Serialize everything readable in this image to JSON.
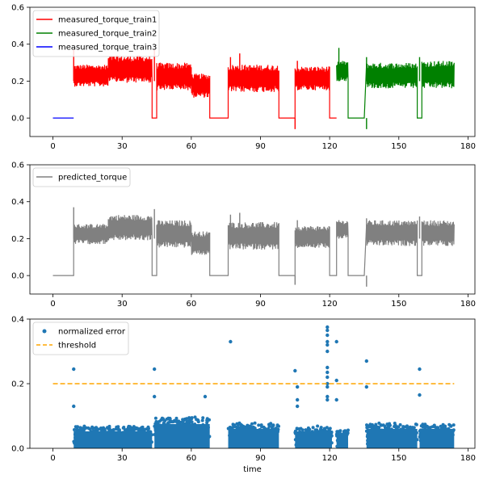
{
  "chart_data": [
    {
      "type": "line",
      "title": "",
      "xlabel": "",
      "ylabel": "",
      "xlim": [
        -10,
        183
      ],
      "ylim": [
        -0.1,
        0.6
      ],
      "xticks": [
        "0",
        "30",
        "60",
        "90",
        "120",
        "150",
        "180"
      ],
      "yticks": [
        "0.0",
        "0.2",
        "0.4",
        "0.6"
      ],
      "grid": false,
      "legend": "top-left",
      "note": "oscillating signal; each segment's values are given as [x_start, x_end, y_low, y_high]",
      "series": [
        {
          "name": "measured_torque_train1",
          "color": "#ff0000",
          "segments": [
            [
              9,
              24,
              0.17,
              0.29
            ],
            [
              24,
              43,
              0.19,
              0.34
            ],
            [
              43,
              45,
              0.0,
              0.0
            ],
            [
              45,
              60,
              0.15,
              0.3
            ],
            [
              60,
              68,
              0.11,
              0.24
            ],
            [
              68,
              76,
              0.0,
              0.0
            ],
            [
              76,
              98,
              0.14,
              0.29
            ],
            [
              98,
              105,
              0.0,
              0.0
            ],
            [
              105,
              120,
              0.15,
              0.28
            ],
            [
              120,
              123,
              0.0,
              0.0
            ]
          ],
          "spikes": [
            [
              9,
              0.37
            ],
            [
              44,
              0.37
            ],
            [
              77,
              0.33
            ],
            [
              81,
              0.35
            ],
            [
              105,
              -0.06
            ],
            [
              106,
              0.31
            ]
          ]
        },
        {
          "name": "measured_torque_train2",
          "color": "#008000",
          "segments": [
            [
              123,
              128,
              0.2,
              0.31
            ],
            [
              128,
              135,
              0.0,
              0.0
            ],
            [
              136,
              158,
              0.16,
              0.3
            ],
            [
              158,
              160,
              0.0,
              0.0
            ],
            [
              160,
              174,
              0.16,
              0.31
            ]
          ],
          "spikes": [
            [
              124,
              0.38
            ],
            [
              136,
              -0.06
            ],
            [
              136,
              0.33
            ],
            [
              159,
              0.33
            ]
          ]
        },
        {
          "name": "measured_torque_train3",
          "color": "#0000ff",
          "segments": [
            [
              0,
              9,
              0.0,
              0.0
            ]
          ],
          "spikes": []
        }
      ]
    },
    {
      "type": "line",
      "title": "",
      "xlabel": "",
      "ylabel": "",
      "xlim": [
        -10,
        183
      ],
      "ylim": [
        -0.1,
        0.6
      ],
      "xticks": [
        "0",
        "30",
        "60",
        "90",
        "120",
        "150",
        "180"
      ],
      "yticks": [
        "0.0",
        "0.2",
        "0.4",
        "0.6"
      ],
      "grid": false,
      "legend": "top-left",
      "series": [
        {
          "name": "predicted_torque",
          "color": "#808080",
          "segments": [
            [
              0,
              9,
              0.0,
              0.0
            ],
            [
              9,
              24,
              0.17,
              0.28
            ],
            [
              24,
              43,
              0.19,
              0.33
            ],
            [
              43,
              45,
              0.0,
              0.0
            ],
            [
              45,
              60,
              0.15,
              0.3
            ],
            [
              60,
              68,
              0.11,
              0.24
            ],
            [
              68,
              76,
              0.0,
              0.0
            ],
            [
              76,
              98,
              0.14,
              0.29
            ],
            [
              98,
              105,
              0.0,
              0.0
            ],
            [
              105,
              120,
              0.15,
              0.27
            ],
            [
              120,
              123,
              0.0,
              0.0
            ],
            [
              123,
              128,
              0.2,
              0.3
            ],
            [
              128,
              135,
              0.0,
              0.0
            ],
            [
              136,
              158,
              0.16,
              0.3
            ],
            [
              158,
              160,
              0.0,
              0.0
            ],
            [
              160,
              174,
              0.16,
              0.3
            ]
          ],
          "spikes": [
            [
              9,
              0.37
            ],
            [
              44,
              0.36
            ],
            [
              77,
              0.33
            ],
            [
              81,
              0.34
            ],
            [
              105,
              -0.05
            ],
            [
              106,
              0.3
            ],
            [
              124,
              0.3
            ],
            [
              136,
              -0.06
            ],
            [
              136,
              0.31
            ],
            [
              159,
              0.32
            ]
          ]
        }
      ]
    },
    {
      "type": "scatter",
      "title": "",
      "xlabel": "time",
      "ylabel": "",
      "xlim": [
        -10,
        183
      ],
      "ylim": [
        0.0,
        0.4
      ],
      "xticks": [
        "0",
        "30",
        "60",
        "90",
        "120",
        "150",
        "180"
      ],
      "yticks": [
        "0.0",
        "0.2",
        "0.4"
      ],
      "grid": false,
      "legend": "top-left",
      "series": [
        {
          "name": "normalized error",
          "color": "#1f77b4",
          "bands": [
            [
              9,
              43,
              0.0,
              0.07
            ],
            [
              44,
              68,
              0.0,
              0.1
            ],
            [
              76,
              98,
              0.0,
              0.08
            ],
            [
              105,
              121,
              0.0,
              0.07
            ],
            [
              123,
              128,
              0.0,
              0.06
            ],
            [
              136,
              158,
              0.0,
              0.08
            ],
            [
              159,
              174,
              0.0,
              0.08
            ]
          ],
          "outliers": [
            [
              9,
              0.245
            ],
            [
              9,
              0.13
            ],
            [
              44,
              0.245
            ],
            [
              44,
              0.16
            ],
            [
              66,
              0.16
            ],
            [
              77,
              0.33
            ],
            [
              105,
              0.24
            ],
            [
              106,
              0.19
            ],
            [
              106,
              0.15
            ],
            [
              106,
              0.13
            ],
            [
              119,
              0.375
            ],
            [
              119,
              0.365
            ],
            [
              119,
              0.35
            ],
            [
              119,
              0.33
            ],
            [
              119,
              0.32
            ],
            [
              119,
              0.3
            ],
            [
              119,
              0.25
            ],
            [
              119,
              0.235
            ],
            [
              119,
              0.22
            ],
            [
              119,
              0.2
            ],
            [
              119,
              0.19
            ],
            [
              119,
              0.16
            ],
            [
              119,
              0.15
            ],
            [
              123,
              0.33
            ],
            [
              123,
              0.21
            ],
            [
              123,
              0.15
            ],
            [
              136,
              0.27
            ],
            [
              136,
              0.19
            ],
            [
              159,
              0.245
            ],
            [
              159,
              0.165
            ]
          ]
        },
        {
          "name": "threshold",
          "color": "#ffa500",
          "x": [
            0,
            174
          ],
          "values": [
            0.2,
            0.2
          ]
        }
      ]
    }
  ]
}
